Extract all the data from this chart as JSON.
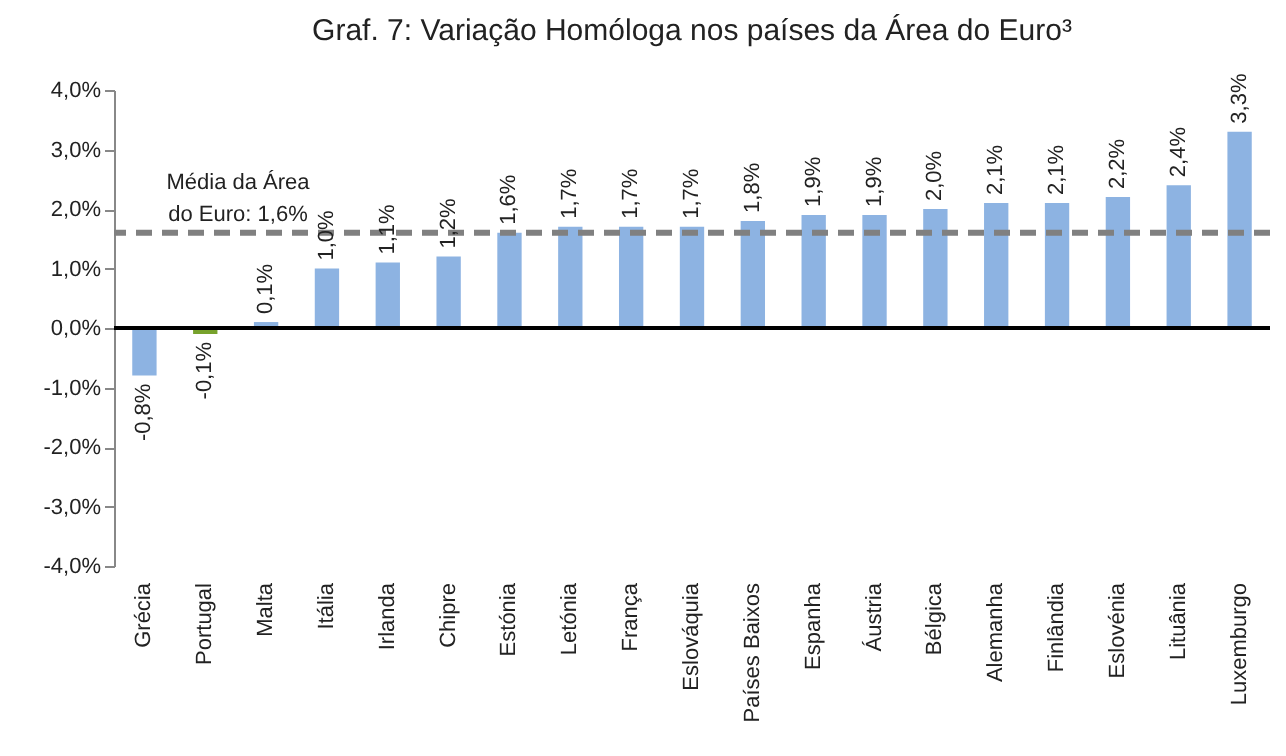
{
  "chart_data": {
    "type": "bar",
    "title": "Graf. 7: Variação Homóloga nos países da Área do Euro³",
    "categories": [
      "Grécia",
      "Portugal",
      "Malta",
      "Itália",
      "Irlanda",
      "Chipre",
      "Estónia",
      "Letónia",
      "França",
      "Eslováquia",
      "Países Baixos",
      "Espanha",
      "Áustria",
      "Bélgica",
      "Alemanha",
      "Finlândia",
      "Eslovénia",
      "Lituânia",
      "Luxemburgo"
    ],
    "values": [
      -0.8,
      -0.1,
      0.1,
      1.0,
      1.1,
      1.2,
      1.6,
      1.7,
      1.7,
      1.7,
      1.8,
      1.9,
      1.9,
      2.0,
      2.1,
      2.1,
      2.2,
      2.4,
      3.3
    ],
    "colors": [
      "#8db3e2",
      "#77a22c",
      "#8db3e2",
      "#8db3e2",
      "#8db3e2",
      "#8db3e2",
      "#8db3e2",
      "#8db3e2",
      "#8db3e2",
      "#8db3e2",
      "#8db3e2",
      "#8db3e2",
      "#8db3e2",
      "#8db3e2",
      "#8db3e2",
      "#8db3e2",
      "#8db3e2",
      "#8db3e2",
      "#8db3e2"
    ],
    "value_labels": [
      "-0,8%",
      "-0,1%",
      "0,1%",
      "1,0%",
      "1,1%",
      "1,2%",
      "1,6%",
      "1,7%",
      "1,7%",
      "1,7%",
      "1,8%",
      "1,9%",
      "1,9%",
      "2,0%",
      "2,1%",
      "2,1%",
      "2,2%",
      "2,4%",
      "3,3%"
    ],
    "ylim": [
      -4,
      4
    ],
    "yticks": [
      {
        "value": -4,
        "label": "-4,0%"
      },
      {
        "value": -3,
        "label": "-3,0%"
      },
      {
        "value": -2,
        "label": "-2,0%"
      },
      {
        "value": -1,
        "label": "-1,0%"
      },
      {
        "value": 0,
        "label": "0,0%"
      },
      {
        "value": 1,
        "label": "1,0%"
      },
      {
        "value": 2,
        "label": "2,0%"
      },
      {
        "value": 3,
        "label": "3,0%"
      },
      {
        "value": 4,
        "label": "4,0%"
      }
    ],
    "ref_lines": [
      {
        "axis": "y",
        "value": 1.6,
        "label": "Média da Área do Euro: 1,6%",
        "color": "#808080",
        "line_style": "dashed"
      }
    ]
  }
}
